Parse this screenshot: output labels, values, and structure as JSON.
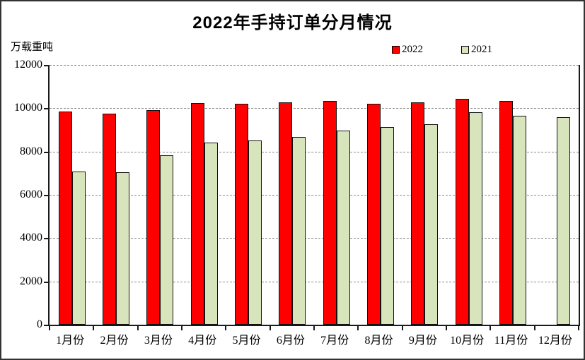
{
  "window": {
    "title": "2022年手持订单分月情况"
  },
  "chart_data": {
    "type": "bar",
    "title": "2022年手持订单分月情况",
    "ylabel": "万载重吨",
    "xlabel": "",
    "categories": [
      "1月份",
      "2月份",
      "3月份",
      "4月份",
      "5月份",
      "6月份",
      "7月份",
      "8月份",
      "9月份",
      "10月份",
      "11月份",
      "12月份"
    ],
    "series": [
      {
        "name": "2022",
        "color": "#FF0000",
        "values": [
          9840,
          9760,
          9900,
          10230,
          10200,
          10280,
          10350,
          10200,
          10270,
          10450,
          10340,
          null
        ]
      },
      {
        "name": "2021",
        "color": "#D8E4BC",
        "values": [
          7080,
          7030,
          7840,
          8420,
          8500,
          8660,
          8960,
          9130,
          9260,
          9810,
          9640,
          9590
        ]
      }
    ],
    "ylim": [
      0,
      12000
    ],
    "ytick_step": 2000,
    "ytick_labels": [
      "0",
      "2000",
      "4000",
      "6000",
      "8000",
      "10000",
      "12000"
    ],
    "grid": true,
    "gridline_style": "dashed",
    "legend_position": "top-right",
    "colors": {
      "axis": "#1a1a1a",
      "gridline": "#8c8c8c",
      "frame_border": "#333333",
      "background": "#ffffff"
    }
  }
}
